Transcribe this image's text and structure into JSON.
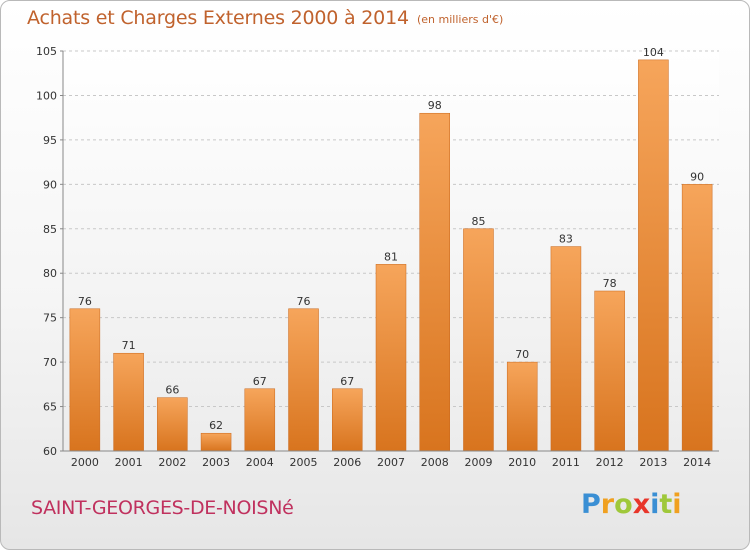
{
  "chart_data": {
    "type": "bar",
    "title": "Achats et Charges Externes 2000 à 2014",
    "subtitle": "(en milliers d'€)",
    "categories": [
      "2000",
      "2001",
      "2002",
      "2003",
      "2004",
      "2005",
      "2006",
      "2007",
      "2008",
      "2009",
      "2010",
      "2011",
      "2012",
      "2013",
      "2014"
    ],
    "values": [
      76,
      71,
      66,
      62,
      67,
      76,
      67,
      81,
      98,
      85,
      70,
      83,
      78,
      104,
      90
    ],
    "ylim": [
      60,
      105
    ],
    "yticks": [
      60,
      65,
      70,
      75,
      80,
      85,
      90,
      95,
      100,
      105
    ],
    "xlabel": "",
    "ylabel": "",
    "grid": "horizontal-dashed",
    "bar_color": "#e8802a"
  },
  "commune": "SAINT-GEORGES-DE-NOISNé",
  "logo": {
    "letters": [
      "P",
      "r",
      "o",
      "x",
      "i",
      "t",
      "i"
    ],
    "colors": [
      "#3a8fd4",
      "#f0a020",
      "#9fc83a",
      "#e8352a",
      "#3a8fd4",
      "#9fc83a",
      "#f0a020"
    ]
  }
}
